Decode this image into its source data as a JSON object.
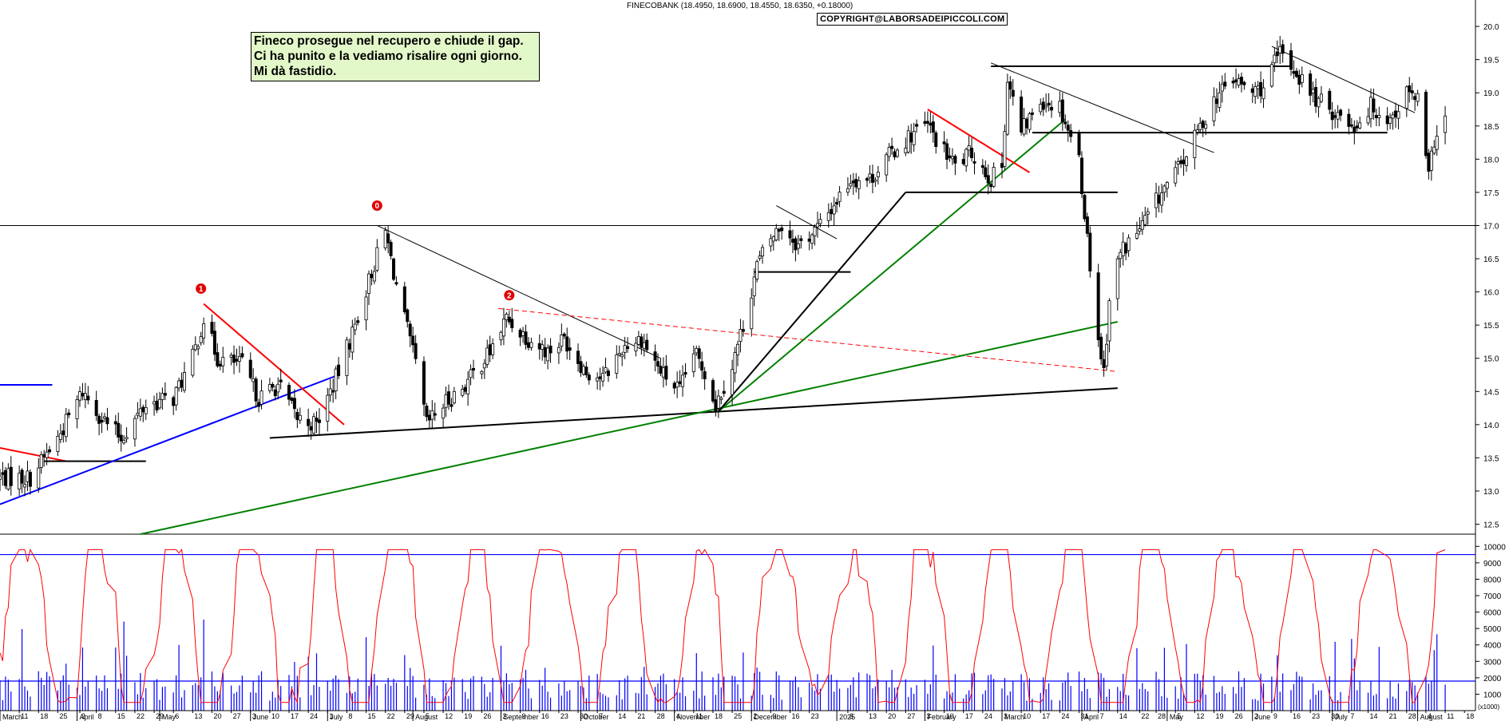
{
  "header": {
    "symbol_line": "FINECOBANK (18.4950, 18.6900, 18.4550, 18.6350, +0.18000)",
    "copyright": "COPYRIGHT@LABORSADEIPICCOLI.COM"
  },
  "annotation": {
    "lines": [
      "Fineco prosegue nel recupero e chiude il gap.",
      "Ci ha punito e la vediamo risalire ogni giorno.",
      "Mi dà fastidio."
    ]
  },
  "markers": [
    "1",
    "0",
    "2"
  ],
  "colors": {
    "price_bars": "#000000",
    "trend_red": "#ff0000",
    "trend_green": "#008000",
    "trend_blue": "#0000ff",
    "oscillator": "#ff0000",
    "volume": "#0000ff",
    "note_bg": "#e3f8c9"
  },
  "chart_data": [
    {
      "type": "candlestick",
      "title": "",
      "price_axis": {
        "ylim": [
          12.35,
          20.35
        ],
        "ticks": [
          "12.5",
          "13.0",
          "13.5",
          "14.0",
          "14.5",
          "15.0",
          "15.5",
          "16.0",
          "16.5",
          "17.0",
          "17.5",
          "18.0",
          "18.5",
          "19.0",
          "19.5",
          "20.0"
        ],
        "horizontal_reference": 17.0
      },
      "x_axis": {
        "range": [
          "2024-03-04",
          "2025-08-22"
        ],
        "day_labels": [
          {
            "d": "2024-03-11",
            "t": "11"
          },
          {
            "d": "2024-03-18",
            "t": "18"
          },
          {
            "d": "2024-03-25",
            "t": "25"
          },
          {
            "d": "2024-04-02",
            "t": "2"
          },
          {
            "d": "2024-04-08",
            "t": "8"
          },
          {
            "d": "2024-04-15",
            "t": "15"
          },
          {
            "d": "2024-04-22",
            "t": "22"
          },
          {
            "d": "2024-04-29",
            "t": "29"
          },
          {
            "d": "2024-05-06",
            "t": "6"
          },
          {
            "d": "2024-05-13",
            "t": "13"
          },
          {
            "d": "2024-05-20",
            "t": "20"
          },
          {
            "d": "2024-05-27",
            "t": "27"
          },
          {
            "d": "2024-06-03",
            "t": "3"
          },
          {
            "d": "2024-06-10",
            "t": "10"
          },
          {
            "d": "2024-06-17",
            "t": "17"
          },
          {
            "d": "2024-06-24",
            "t": "24"
          },
          {
            "d": "2024-07-01",
            "t": "1"
          },
          {
            "d": "2024-07-08",
            "t": "8"
          },
          {
            "d": "2024-07-15",
            "t": "15"
          },
          {
            "d": "2024-07-22",
            "t": "22"
          },
          {
            "d": "2024-07-29",
            "t": "29"
          },
          {
            "d": "2024-08-05",
            "t": "5"
          },
          {
            "d": "2024-08-12",
            "t": "12"
          },
          {
            "d": "2024-08-19",
            "t": "19"
          },
          {
            "d": "2024-08-26",
            "t": "26"
          },
          {
            "d": "2024-09-02",
            "t": "2"
          },
          {
            "d": "2024-09-09",
            "t": "9"
          },
          {
            "d": "2024-09-16",
            "t": "16"
          },
          {
            "d": "2024-09-23",
            "t": "23"
          },
          {
            "d": "2024-09-30",
            "t": "30"
          },
          {
            "d": "2024-10-07",
            "t": "7"
          },
          {
            "d": "2024-10-14",
            "t": "14"
          },
          {
            "d": "2024-10-21",
            "t": "21"
          },
          {
            "d": "2024-10-28",
            "t": "28"
          },
          {
            "d": "2024-11-04",
            "t": "4"
          },
          {
            "d": "2024-11-11",
            "t": "11"
          },
          {
            "d": "2024-11-18",
            "t": "18"
          },
          {
            "d": "2024-11-25",
            "t": "25"
          },
          {
            "d": "2024-12-02",
            "t": "2"
          },
          {
            "d": "2024-12-09",
            "t": "9"
          },
          {
            "d": "2024-12-16",
            "t": "16"
          },
          {
            "d": "2024-12-23",
            "t": "23"
          },
          {
            "d": "2025-01-06",
            "t": "6"
          },
          {
            "d": "2025-01-13",
            "t": "13"
          },
          {
            "d": "2025-01-20",
            "t": "20"
          },
          {
            "d": "2025-01-27",
            "t": "27"
          },
          {
            "d": "2025-02-03",
            "t": "3"
          },
          {
            "d": "2025-02-10",
            "t": "10"
          },
          {
            "d": "2025-02-17",
            "t": "17"
          },
          {
            "d": "2025-02-24",
            "t": "24"
          },
          {
            "d": "2025-03-03",
            "t": "3"
          },
          {
            "d": "2025-03-10",
            "t": "10"
          },
          {
            "d": "2025-03-17",
            "t": "17"
          },
          {
            "d": "2025-03-24",
            "t": "24"
          },
          {
            "d": "2025-03-31",
            "t": "31"
          },
          {
            "d": "2025-04-07",
            "t": "7"
          },
          {
            "d": "2025-04-14",
            "t": "14"
          },
          {
            "d": "2025-04-22",
            "t": "22"
          },
          {
            "d": "2025-04-28",
            "t": "28"
          },
          {
            "d": "2025-05-05",
            "t": "5"
          },
          {
            "d": "2025-05-12",
            "t": "12"
          },
          {
            "d": "2025-05-19",
            "t": "19"
          },
          {
            "d": "2025-05-26",
            "t": "26"
          },
          {
            "d": "2025-06-02",
            "t": "2"
          },
          {
            "d": "2025-06-09",
            "t": "9"
          },
          {
            "d": "2025-06-16",
            "t": "16"
          },
          {
            "d": "2025-06-23",
            "t": "23"
          },
          {
            "d": "2025-06-30",
            "t": "30"
          },
          {
            "d": "2025-07-07",
            "t": "7"
          },
          {
            "d": "2025-07-14",
            "t": "14"
          },
          {
            "d": "2025-07-21",
            "t": "21"
          },
          {
            "d": "2025-07-28",
            "t": "28"
          },
          {
            "d": "2025-08-04",
            "t": "4"
          },
          {
            "d": "2025-08-11",
            "t": "11"
          },
          {
            "d": "2025-08-18",
            "t": "18"
          }
        ],
        "month_labels": [
          {
            "d": "2024-03-04",
            "t": "March"
          },
          {
            "d": "2024-04-01",
            "t": "April"
          },
          {
            "d": "2024-05-01",
            "t": "May"
          },
          {
            "d": "2024-06-03",
            "t": "June"
          },
          {
            "d": "2024-07-01",
            "t": "July"
          },
          {
            "d": "2024-08-01",
            "t": "August"
          },
          {
            "d": "2024-09-02",
            "t": "September"
          },
          {
            "d": "2024-10-01",
            "t": "October"
          },
          {
            "d": "2024-11-04",
            "t": "November"
          },
          {
            "d": "2024-12-02",
            "t": "December"
          },
          {
            "d": "2025-01-02",
            "t": "2025"
          },
          {
            "d": "2025-02-03",
            "t": "February"
          },
          {
            "d": "2025-03-03",
            "t": "March"
          },
          {
            "d": "2025-04-01",
            "t": "April"
          },
          {
            "d": "2025-05-02",
            "t": "May"
          },
          {
            "d": "2025-06-02",
            "t": "June"
          },
          {
            "d": "2025-07-01",
            "t": "July"
          },
          {
            "d": "2025-08-01",
            "t": "August"
          }
        ]
      },
      "anchors": [
        [
          "2024-03-04",
          13.2
        ],
        [
          "2024-03-15",
          13.2
        ],
        [
          "2024-03-25",
          13.8
        ],
        [
          "2024-04-03",
          14.5
        ],
        [
          "2024-04-10",
          14.1
        ],
        [
          "2024-04-17",
          13.8
        ],
        [
          "2024-04-26",
          14.3
        ],
        [
          "2024-05-06",
          14.4
        ],
        [
          "2024-05-13",
          15.0
        ],
        [
          "2024-05-17",
          15.6
        ],
        [
          "2024-05-22",
          15.0
        ],
        [
          "2024-05-31",
          14.9
        ],
        [
          "2024-06-06",
          14.4
        ],
        [
          "2024-06-13",
          14.6
        ],
        [
          "2024-06-20",
          14.1
        ],
        [
          "2024-06-27",
          14.0
        ],
        [
          "2024-07-05",
          14.8
        ],
        [
          "2024-07-11",
          15.5
        ],
        [
          "2024-07-17",
          16.3
        ],
        [
          "2024-07-22",
          16.9
        ],
        [
          "2024-07-26",
          16.1
        ],
        [
          "2024-08-02",
          14.9
        ],
        [
          "2024-08-06",
          14.0
        ],
        [
          "2024-08-12",
          14.3
        ],
        [
          "2024-08-20",
          14.6
        ],
        [
          "2024-08-29",
          15.1
        ],
        [
          "2024-09-04",
          15.6
        ],
        [
          "2024-09-12",
          15.3
        ],
        [
          "2024-09-19",
          15.1
        ],
        [
          "2024-09-25",
          15.3
        ],
        [
          "2024-10-03",
          14.8
        ],
        [
          "2024-10-09",
          14.7
        ],
        [
          "2024-10-17",
          15.2
        ],
        [
          "2024-10-23",
          15.3
        ],
        [
          "2024-10-30",
          14.8
        ],
        [
          "2024-11-06",
          14.5
        ],
        [
          "2024-11-11",
          15.1
        ],
        [
          "2024-11-15",
          14.8
        ],
        [
          "2024-11-19",
          14.3
        ],
        [
          "2024-11-25",
          14.9
        ],
        [
          "2024-11-29",
          15.5
        ],
        [
          "2024-12-04",
          16.4
        ],
        [
          "2024-12-09",
          16.8
        ],
        [
          "2024-12-13",
          17.0
        ],
        [
          "2024-12-19",
          16.7
        ],
        [
          "2024-12-27",
          17.0
        ],
        [
          "2025-01-07",
          17.7
        ],
        [
          "2025-01-14",
          17.7
        ],
        [
          "2025-01-22",
          18.1
        ],
        [
          "2025-01-30",
          18.4
        ],
        [
          "2025-02-04",
          18.5
        ],
        [
          "2025-02-10",
          18.1
        ],
        [
          "2025-02-14",
          17.9
        ],
        [
          "2025-02-20",
          18.1
        ],
        [
          "2025-02-27",
          17.7
        ],
        [
          "2025-03-03",
          17.9
        ],
        [
          "2025-03-05",
          19.2
        ],
        [
          "2025-03-10",
          18.4
        ],
        [
          "2025-03-17",
          18.9
        ],
        [
          "2025-03-24",
          18.8
        ],
        [
          "2025-03-31",
          18.0
        ],
        [
          "2025-04-03",
          16.8
        ],
        [
          "2025-04-07",
          15.3
        ],
        [
          "2025-04-09",
          14.8
        ],
        [
          "2025-04-11",
          15.9
        ],
        [
          "2025-04-15",
          16.6
        ],
        [
          "2025-04-23",
          17.0
        ],
        [
          "2025-04-30",
          17.5
        ],
        [
          "2025-05-07",
          17.9
        ],
        [
          "2025-05-13",
          18.4
        ],
        [
          "2025-05-19",
          18.9
        ],
        [
          "2025-05-26",
          19.2
        ],
        [
          "2025-06-02",
          19.0
        ],
        [
          "2025-06-06",
          19.1
        ],
        [
          "2025-06-12",
          19.6
        ],
        [
          "2025-06-18",
          19.3
        ],
        [
          "2025-06-25",
          18.9
        ],
        [
          "2025-07-02",
          18.7
        ],
        [
          "2025-07-09",
          18.5
        ],
        [
          "2025-07-15",
          18.8
        ],
        [
          "2025-07-22",
          18.6
        ],
        [
          "2025-07-28",
          19.0
        ],
        [
          "2025-08-01",
          18.9
        ],
        [
          "2025-08-05",
          17.7
        ],
        [
          "2025-08-07",
          18.3
        ],
        [
          "2025-08-11",
          18.6
        ]
      ],
      "trendlines": [
        {
          "color": "red",
          "dash": false,
          "from": [
            "2024-03-04",
            13.65
          ],
          "to": [
            "2024-03-28",
            13.45
          ]
        },
        {
          "color": "black",
          "dash": false,
          "from": [
            "2024-03-20",
            13.45
          ],
          "to": [
            "2024-04-26",
            13.45
          ]
        },
        {
          "color": "blue",
          "dash": false,
          "from": [
            "2024-03-04",
            14.6
          ],
          "to": [
            "2024-03-23",
            14.6
          ]
        },
        {
          "color": "blue",
          "dash": false,
          "from": [
            "2024-03-04",
            12.8
          ],
          "to": [
            "2024-07-05",
            14.75
          ]
        },
        {
          "color": "red",
          "dash": false,
          "from": [
            "2024-05-17",
            15.82
          ],
          "to": [
            "2024-07-07",
            14.0
          ]
        },
        {
          "color": "black",
          "dash": false,
          "from": [
            "2024-06-10",
            13.8
          ],
          "to": [
            "2025-04-14",
            14.55
          ]
        },
        {
          "color": "black",
          "dash": false,
          "from": [
            "2024-07-19",
            17.0
          ],
          "to": [
            "2024-10-30",
            15.0
          ]
        },
        {
          "color": "red",
          "dash": true,
          "from": [
            "2024-09-01",
            15.75
          ],
          "to": [
            "2025-04-14",
            14.8
          ]
        },
        {
          "color": "green",
          "dash": false,
          "from": [
            "2024-04-24",
            12.35
          ],
          "to": [
            "2025-04-14",
            15.55
          ]
        },
        {
          "color": "green",
          "dash": false,
          "from": [
            "2024-11-20",
            14.2
          ],
          "to": [
            "2025-03-26",
            18.6
          ]
        },
        {
          "color": "black",
          "dash": false,
          "from": [
            "2024-11-20",
            14.2
          ],
          "to": [
            "2025-01-27",
            17.5
          ]
        },
        {
          "color": "black",
          "dash": false,
          "from": [
            "2024-12-03",
            16.3
          ],
          "to": [
            "2025-01-07",
            16.3
          ]
        },
        {
          "color": "black",
          "dash": false,
          "from": [
            "2024-12-11",
            17.3
          ],
          "to": [
            "2025-01-02",
            16.8
          ]
        },
        {
          "color": "black",
          "dash": false,
          "from": [
            "2025-01-27",
            17.5
          ],
          "to": [
            "2025-04-14",
            17.5
          ]
        },
        {
          "color": "red",
          "dash": false,
          "from": [
            "2025-02-04",
            18.75
          ],
          "to": [
            "2025-03-13",
            17.8
          ]
        },
        {
          "color": "black",
          "dash": false,
          "from": [
            "2025-02-27",
            19.45
          ],
          "to": [
            "2025-05-19",
            18.1
          ]
        },
        {
          "color": "black",
          "dash": false,
          "from": [
            "2025-02-27",
            19.4
          ],
          "to": [
            "2025-06-16",
            19.4
          ]
        },
        {
          "color": "black",
          "dash": false,
          "from": [
            "2025-03-14",
            18.4
          ],
          "to": [
            "2025-07-21",
            18.4
          ]
        },
        {
          "color": "black",
          "dash": false,
          "from": [
            "2025-06-09",
            19.7
          ],
          "to": [
            "2025-07-31",
            18.7
          ]
        }
      ],
      "marker_points": [
        {
          "label": "1",
          "d": "2024-05-16",
          "v": 16.05
        },
        {
          "label": "0",
          "d": "2024-07-19",
          "v": 17.3
        },
        {
          "label": "2",
          "d": "2024-09-05",
          "v": 15.95
        }
      ]
    },
    {
      "type": "line",
      "name": "oscillator",
      "y_axis": {
        "ylim": [
          0,
          10500
        ],
        "ticks": [
          "1000",
          "2000",
          "3000",
          "4000",
          "5000",
          "6000",
          "7000",
          "8000",
          "9000",
          "10000"
        ],
        "reference_lines": [
          9500,
          1800
        ]
      },
      "x_unit_label": "(x1000)"
    }
  ]
}
